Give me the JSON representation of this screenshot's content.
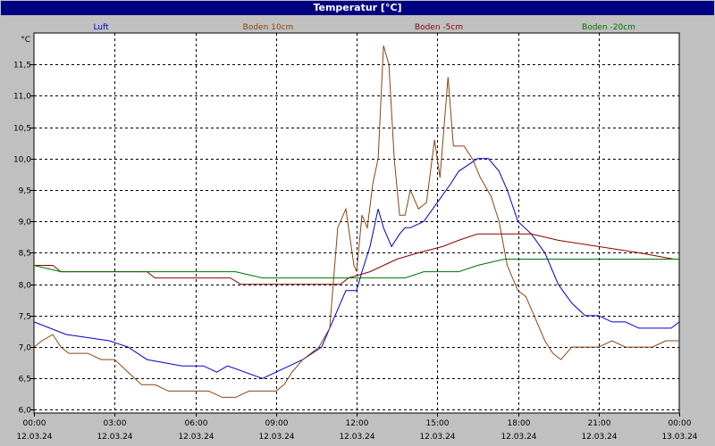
{
  "window": {
    "title": "Temperatur [°C]"
  },
  "colors": {
    "background": "#c0c0c0",
    "titlebar": "#000080",
    "plot_bg": "#ffffff"
  },
  "chart_data": {
    "type": "line",
    "title": "Temperatur [°C]",
    "y_unit_label": "°C",
    "ylim": [
      5.95,
      12.0
    ],
    "y_ticks": [
      6.0,
      6.5,
      7.0,
      7.5,
      8.0,
      8.5,
      9.0,
      9.5,
      10.0,
      10.5,
      11.0,
      11.5
    ],
    "y_tick_labels": [
      "6,0",
      "6,5",
      "7,0",
      "7,5",
      "8,0",
      "8,5",
      "9,0",
      "9,5",
      "10,0",
      "10,5",
      "11,0",
      "11,5"
    ],
    "xlim_hours": [
      0,
      24
    ],
    "x_ticks_hours": [
      0,
      3,
      6,
      9,
      12,
      15,
      18,
      21,
      24
    ],
    "x_tick_times": [
      "00:00",
      "03:00",
      "06:00",
      "09:00",
      "12:00",
      "15:00",
      "18:00",
      "21:00",
      "00:00"
    ],
    "x_tick_dates": [
      "12.03.24",
      "12.03.24",
      "12.03.24",
      "12.03.24",
      "12.03.24",
      "12.03.24",
      "12.03.24",
      "12.03.24",
      "13.03.24"
    ],
    "grid": true,
    "legend_position": "top",
    "series": [
      {
        "name": "Luft",
        "color": "#0000cc",
        "x": [
          0,
          1.2,
          2.8,
          3.5,
          4.2,
          5.5,
          6.3,
          6.8,
          7.2,
          8.5,
          9,
          9.5,
          10,
          10.7,
          11.2,
          11.6,
          12,
          12.2,
          12.5,
          12.8,
          13,
          13.3,
          13.6,
          13.8,
          14,
          14.5,
          15,
          15.5,
          15.8,
          16.5,
          16.9,
          17.3,
          17.6,
          18,
          18.5,
          19,
          19.5,
          20,
          20.5,
          21,
          21.5,
          22,
          22.5,
          23,
          23.7,
          24
        ],
        "y": [
          7.4,
          7.2,
          7.1,
          7.0,
          6.8,
          6.7,
          6.7,
          6.6,
          6.7,
          6.5,
          6.6,
          6.7,
          6.8,
          7.0,
          7.5,
          7.9,
          7.9,
          8.2,
          8.6,
          9.2,
          8.9,
          8.6,
          8.8,
          8.9,
          8.9,
          9.0,
          9.3,
          9.6,
          9.8,
          10.0,
          10.0,
          9.8,
          9.5,
          9.0,
          8.8,
          8.5,
          8.0,
          7.7,
          7.5,
          7.5,
          7.4,
          7.4,
          7.3,
          7.3,
          7.3,
          7.4
        ]
      },
      {
        "name": "Boden 10cm",
        "color": "#8b4513",
        "x": [
          0,
          0.3,
          0.7,
          1,
          1.3,
          1.7,
          2,
          2.5,
          3,
          3.5,
          4,
          4.5,
          5,
          5.5,
          6,
          6.5,
          7,
          7.5,
          8,
          8.5,
          9,
          9.3,
          9.6,
          10,
          10.3,
          10.6,
          11,
          11.3,
          11.6,
          11.9,
          12,
          12.2,
          12.4,
          12.6,
          12.8,
          13,
          13.2,
          13.4,
          13.6,
          13.8,
          14,
          14.3,
          14.6,
          14.9,
          15.1,
          15.4,
          15.6,
          15.8,
          16,
          16.3,
          16.6,
          17,
          17.3,
          17.6,
          18,
          18.3,
          18.6,
          19,
          19.3,
          19.6,
          20,
          20.5,
          21,
          21.5,
          22,
          22.5,
          23,
          23.5,
          24
        ],
        "y": [
          7.0,
          7.1,
          7.2,
          7.0,
          6.9,
          6.9,
          6.9,
          6.8,
          6.8,
          6.6,
          6.4,
          6.4,
          6.3,
          6.3,
          6.3,
          6.3,
          6.2,
          6.2,
          6.3,
          6.3,
          6.3,
          6.4,
          6.6,
          6.8,
          6.9,
          7.0,
          7.3,
          8.9,
          9.2,
          8.3,
          8.2,
          9.1,
          8.9,
          9.6,
          10.0,
          11.8,
          11.5,
          10.0,
          9.1,
          9.1,
          9.5,
          9.2,
          9.3,
          10.3,
          9.7,
          11.3,
          10.2,
          10.2,
          10.2,
          10.0,
          9.7,
          9.4,
          9.0,
          8.3,
          7.9,
          7.8,
          7.5,
          7.1,
          6.9,
          6.8,
          7.0,
          7.0,
          7.0,
          7.1,
          7.0,
          7.0,
          7.0,
          7.1,
          7.1
        ]
      },
      {
        "name": "Boden -5cm",
        "color": "#8b0000",
        "x": [
          0,
          0.7,
          1,
          4.2,
          4.5,
          7.3,
          7.7,
          11.4,
          11.7,
          12.5,
          13.5,
          14.3,
          15.2,
          15.8,
          16.5,
          17.2,
          18.5,
          19.5,
          21,
          22.5,
          23.8,
          24
        ],
        "y": [
          8.3,
          8.3,
          8.2,
          8.2,
          8.1,
          8.1,
          8.0,
          8.0,
          8.1,
          8.2,
          8.4,
          8.5,
          8.6,
          8.7,
          8.8,
          8.8,
          8.8,
          8.7,
          8.6,
          8.5,
          8.4,
          8.4
        ]
      },
      {
        "name": "Boden -20cm",
        "color": "#007000",
        "x": [
          0,
          1,
          2.5,
          7.5,
          8.5,
          11.7,
          12.2,
          13.8,
          14.5,
          15.8,
          16.5,
          17.5,
          18.5,
          21,
          24
        ],
        "y": [
          8.3,
          8.2,
          8.2,
          8.2,
          8.1,
          8.1,
          8.1,
          8.1,
          8.2,
          8.2,
          8.3,
          8.4,
          8.4,
          8.4,
          8.4
        ]
      }
    ]
  }
}
